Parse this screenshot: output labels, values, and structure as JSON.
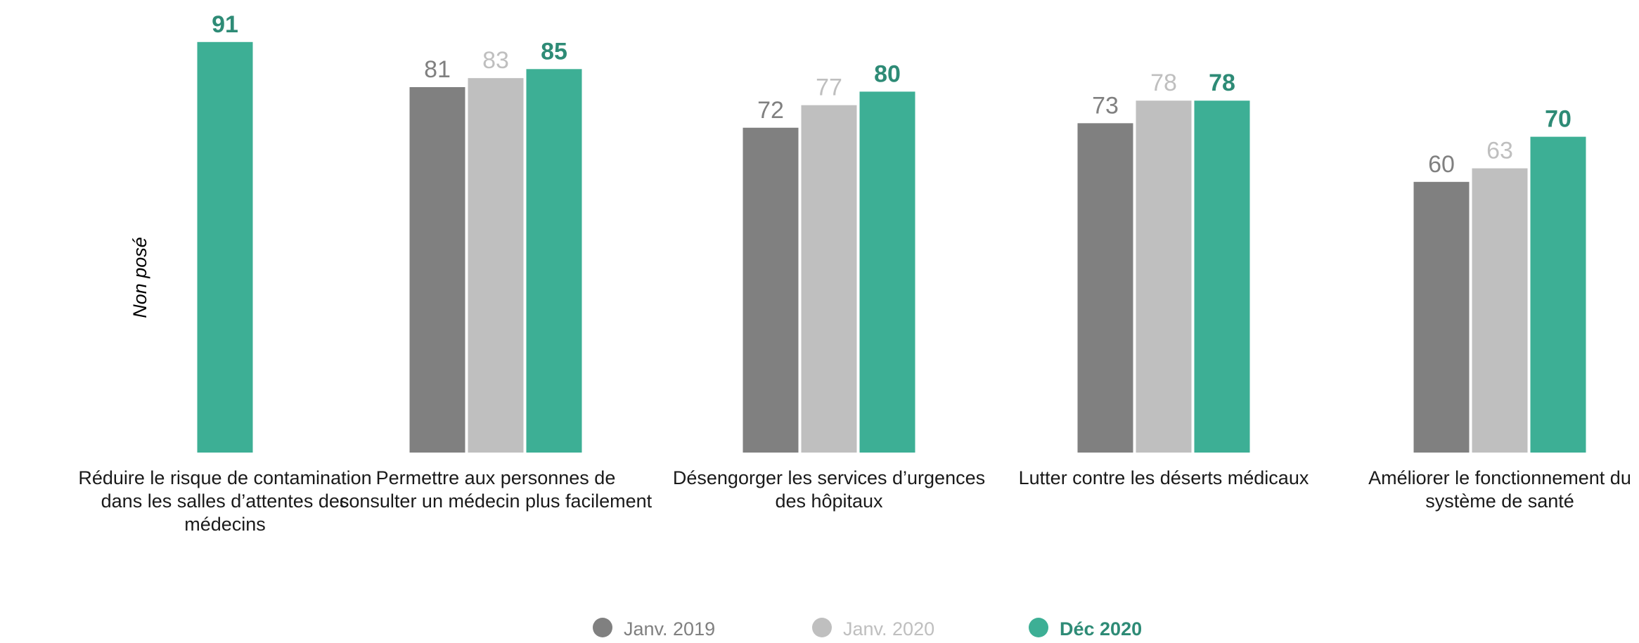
{
  "chart_data": {
    "type": "bar",
    "categories": [
      [
        "Réduire le risque de contamination",
        "dans les salles d’attentes des",
        "médecins"
      ],
      [
        "Permettre aux personnes de",
        "consulter un médecin plus facilement"
      ],
      [
        "Désengorger les services d’urgences",
        "des hôpitaux"
      ],
      [
        "Lutter contre les déserts médicaux"
      ],
      [
        "Améliorer le fonctionnement du",
        "système de santé"
      ]
    ],
    "series": [
      {
        "name": "Janv. 2019",
        "color": "#808080",
        "label_color": "#808080",
        "label_bold": false,
        "values": [
          null,
          81,
          72,
          73,
          60
        ]
      },
      {
        "name": "Janv. 2020",
        "color": "#bfbfbf",
        "label_color": "#bfbfbf",
        "label_bold": false,
        "values": [
          null,
          83,
          77,
          78,
          63
        ]
      },
      {
        "name": "Déc 2020",
        "color": "#3daf95",
        "label_color": "#2e8b76",
        "label_bold": true,
        "values": [
          91,
          85,
          80,
          78,
          70
        ]
      }
    ],
    "annotations": [
      "Non posé"
    ],
    "ylim": [
      0,
      100
    ],
    "grid": false,
    "legend_position": "bottom"
  }
}
